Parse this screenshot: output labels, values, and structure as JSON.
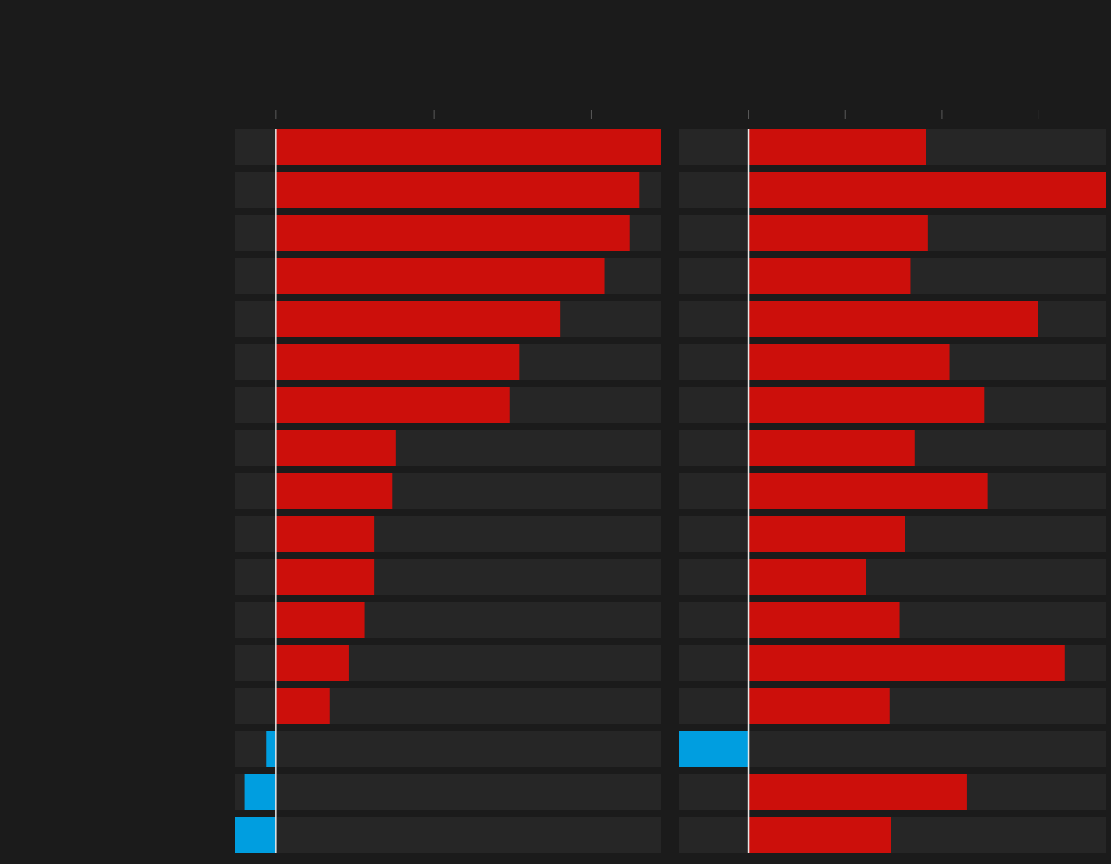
{
  "chart_data": [
    {
      "type": "bar",
      "orientation": "horizontal",
      "categories": [
        "",
        "",
        "",
        "",
        "",
        "",
        "",
        "",
        "",
        "",
        "",
        "",
        "",
        "",
        "",
        "",
        ""
      ],
      "values": [
        24.4,
        23.0,
        22.4,
        20.8,
        18.0,
        15.4,
        14.8,
        7.6,
        7.4,
        6.2,
        6.2,
        5.6,
        4.6,
        3.4,
        -0.6,
        -2.0,
        -2.6
      ],
      "xlim": [
        -2.6,
        24.4
      ],
      "xticks": [
        0,
        10,
        20
      ],
      "tick_labels": [],
      "grid": false
    },
    {
      "type": "bar",
      "orientation": "horizontal",
      "categories": [
        "",
        "",
        "",
        "",
        "",
        "",
        "",
        "",
        "",
        "",
        "",
        "",
        "",
        "",
        "",
        "",
        ""
      ],
      "values": [
        9.2,
        18.5,
        9.3,
        8.4,
        15.0,
        10.4,
        12.2,
        8.6,
        12.4,
        8.1,
        6.1,
        7.8,
        16.4,
        7.3,
        -3.6,
        11.3,
        7.4
      ],
      "xlim": [
        -3.6,
        18.5
      ],
      "xticks": [
        0,
        5,
        10,
        15
      ],
      "tick_labels": [],
      "grid": false
    }
  ],
  "colors": {
    "background": "#1b1b1b",
    "track": "#262626",
    "positive": "#cc0f0b",
    "negative": "#009ee0",
    "zero_line": "#e6e6e6",
    "tick": "#5a5a5a"
  }
}
